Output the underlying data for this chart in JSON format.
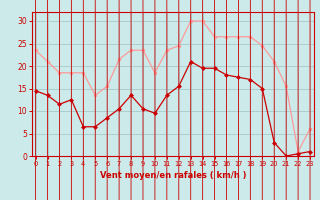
{
  "x": [
    0,
    1,
    2,
    3,
    4,
    5,
    6,
    7,
    8,
    9,
    10,
    11,
    12,
    13,
    14,
    15,
    16,
    17,
    18,
    19,
    20,
    21,
    22,
    23
  ],
  "wind_mean": [
    14.5,
    13.5,
    11.5,
    12.5,
    6.5,
    6.5,
    8.5,
    10.5,
    13.5,
    10.5,
    9.5,
    13.5,
    15.5,
    21.0,
    19.5,
    19.5,
    18.0,
    17.5,
    17.0,
    15.0,
    3.0,
    0.0,
    0.5,
    1.0
  ],
  "wind_gust": [
    23.5,
    21.0,
    18.5,
    18.5,
    18.5,
    13.5,
    15.5,
    21.5,
    23.5,
    23.5,
    18.5,
    23.5,
    24.5,
    30.0,
    30.0,
    26.5,
    26.5,
    26.5,
    26.5,
    24.5,
    21.0,
    15.5,
    1.0,
    6.0
  ],
  "xlim": [
    -0.3,
    23.3
  ],
  "ylim": [
    0,
    32
  ],
  "yticks": [
    0,
    5,
    10,
    15,
    20,
    25,
    30
  ],
  "xticks": [
    0,
    1,
    2,
    3,
    4,
    5,
    6,
    7,
    8,
    9,
    10,
    11,
    12,
    13,
    14,
    15,
    16,
    17,
    18,
    19,
    20,
    21,
    22,
    23
  ],
  "xlabel": "Vent moyen/en rafales ( km/h )",
  "bg_color": "#cceaea",
  "grid_color": "#aacfcf",
  "line_mean_color": "#cc0000",
  "line_gust_color": "#ff9999",
  "axis_color": "#cc0000",
  "tick_color": "#cc0000",
  "xlabel_color": "#cc0000"
}
